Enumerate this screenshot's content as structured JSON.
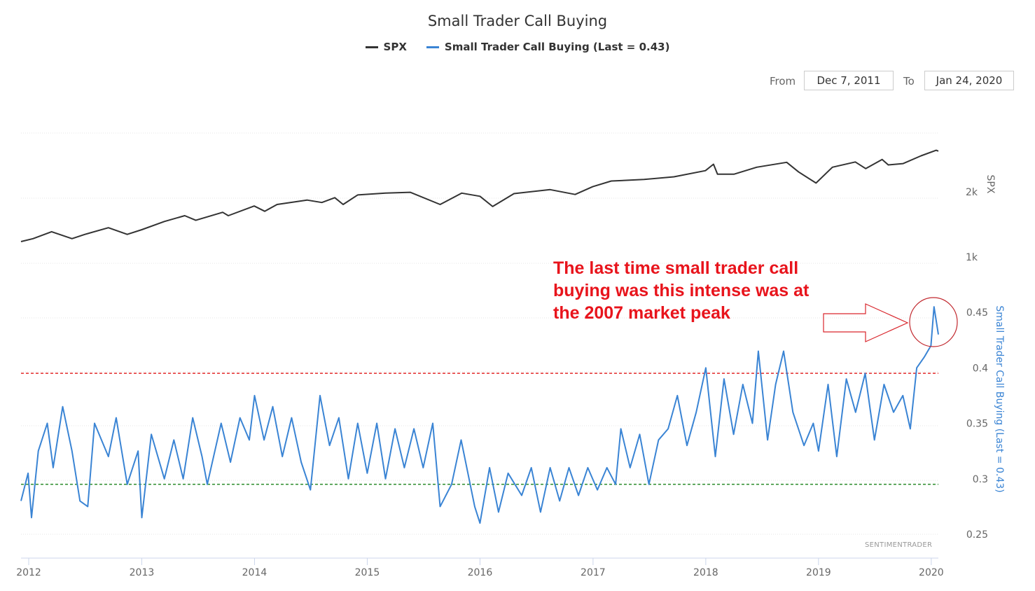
{
  "title": "Small Trader Call Buying",
  "legend": {
    "spx": {
      "label": "SPX",
      "color": "#333333"
    },
    "call": {
      "label": "Small Trader Call Buying (Last = 0.43)",
      "color": "#3a84d4"
    }
  },
  "range_selector": {
    "from_label": "From",
    "from_value": "Dec 7, 2011",
    "to_label": "To",
    "to_value": "Jan 24, 2020"
  },
  "annotation": {
    "lines": [
      "The last time small trader call",
      "buying was this intense was at",
      "the 2007 market peak"
    ],
    "color": "#e8141c",
    "arrow_icon": "right-arrow-icon",
    "highlight_icon": "circle-highlight-icon"
  },
  "credits": "SENTIMENTRADER",
  "chart_data": {
    "type": "line",
    "title": "Small Trader Call Buying",
    "x_axis": {
      "ticks": [
        "2012",
        "2013",
        "2014",
        "2015",
        "2016",
        "2017",
        "2018",
        "2019",
        "2020"
      ]
    },
    "y_axis_spx": {
      "label": "SPX",
      "scale": "log",
      "ticks": [
        "1k",
        "2k"
      ],
      "tick_values": [
        1000,
        2000
      ]
    },
    "y_axis_call": {
      "label": "Small Trader Call Buying (Last = 0.43)",
      "ticks": [
        "0.25",
        "0.3",
        "0.35",
        "0.4",
        "0.45"
      ],
      "tick_values": [
        0.25,
        0.3,
        0.35,
        0.4,
        0.45
      ],
      "range": [
        0.25,
        0.45
      ]
    },
    "reference_lines": [
      {
        "value": 0.395,
        "color": "#e32a2a",
        "style": "dashed"
      },
      {
        "value": 0.295,
        "color": "#2a8a2a",
        "style": "dashed"
      }
    ],
    "series": [
      {
        "name": "SPX",
        "color": "#333333",
        "points": [
          [
            "2011-12-07",
            1260
          ],
          [
            "2012-01-15",
            1300
          ],
          [
            "2012-03-15",
            1400
          ],
          [
            "2012-05-20",
            1300
          ],
          [
            "2012-07-01",
            1360
          ],
          [
            "2012-09-15",
            1460
          ],
          [
            "2012-11-15",
            1360
          ],
          [
            "2013-01-01",
            1430
          ],
          [
            "2013-03-15",
            1560
          ],
          [
            "2013-05-20",
            1660
          ],
          [
            "2013-06-25",
            1580
          ],
          [
            "2013-09-20",
            1720
          ],
          [
            "2013-10-08",
            1660
          ],
          [
            "2013-12-31",
            1840
          ],
          [
            "2014-02-03",
            1740
          ],
          [
            "2014-03-15",
            1870
          ],
          [
            "2014-06-20",
            1960
          ],
          [
            "2014-08-07",
            1910
          ],
          [
            "2014-09-18",
            2010
          ],
          [
            "2014-10-15",
            1870
          ],
          [
            "2014-12-01",
            2070
          ],
          [
            "2015-03-01",
            2110
          ],
          [
            "2015-05-20",
            2130
          ],
          [
            "2015-08-25",
            1870
          ],
          [
            "2015-11-03",
            2110
          ],
          [
            "2016-01-01",
            2040
          ],
          [
            "2016-02-11",
            1830
          ],
          [
            "2016-04-20",
            2100
          ],
          [
            "2016-08-15",
            2190
          ],
          [
            "2016-11-04",
            2080
          ],
          [
            "2016-12-31",
            2260
          ],
          [
            "2017-03-01",
            2400
          ],
          [
            "2017-06-15",
            2440
          ],
          [
            "2017-09-20",
            2510
          ],
          [
            "2017-12-31",
            2680
          ],
          [
            "2018-01-26",
            2870
          ],
          [
            "2018-02-08",
            2580
          ],
          [
            "2018-04-02",
            2580
          ],
          [
            "2018-06-15",
            2780
          ],
          [
            "2018-09-20",
            2930
          ],
          [
            "2018-10-29",
            2640
          ],
          [
            "2018-12-24",
            2350
          ],
          [
            "2019-02-15",
            2780
          ],
          [
            "2019-04-30",
            2940
          ],
          [
            "2019-06-03",
            2740
          ],
          [
            "2019-07-26",
            3020
          ],
          [
            "2019-08-15",
            2850
          ],
          [
            "2019-10-02",
            2890
          ],
          [
            "2019-11-29",
            3140
          ],
          [
            "2020-01-17",
            3330
          ],
          [
            "2020-01-24",
            3300
          ]
        ]
      },
      {
        "name": "Small Trader Call Buying (Last = 0.43)",
        "color": "#3a84d4",
        "points": [
          [
            "2011-12-07",
            0.28
          ],
          [
            "2011-12-30",
            0.305
          ],
          [
            "2012-01-10",
            0.265
          ],
          [
            "2012-02-01",
            0.325
          ],
          [
            "2012-03-01",
            0.35
          ],
          [
            "2012-03-20",
            0.31
          ],
          [
            "2012-04-20",
            0.365
          ],
          [
            "2012-05-20",
            0.325
          ],
          [
            "2012-06-15",
            0.28
          ],
          [
            "2012-07-10",
            0.275
          ],
          [
            "2012-08-01",
            0.35
          ],
          [
            "2012-09-15",
            0.32
          ],
          [
            "2012-10-10",
            0.355
          ],
          [
            "2012-11-15",
            0.295
          ],
          [
            "2012-12-20",
            0.325
          ],
          [
            "2013-01-01",
            0.265
          ],
          [
            "2013-02-01",
            0.34
          ],
          [
            "2013-03-15",
            0.3
          ],
          [
            "2013-04-15",
            0.335
          ],
          [
            "2013-05-15",
            0.3
          ],
          [
            "2013-06-15",
            0.355
          ],
          [
            "2013-07-15",
            0.32
          ],
          [
            "2013-08-01",
            0.295
          ],
          [
            "2013-09-15",
            0.35
          ],
          [
            "2013-10-15",
            0.315
          ],
          [
            "2013-11-15",
            0.355
          ],
          [
            "2013-12-15",
            0.335
          ],
          [
            "2014-01-01",
            0.375
          ],
          [
            "2014-02-01",
            0.335
          ],
          [
            "2014-03-01",
            0.365
          ],
          [
            "2014-04-01",
            0.32
          ],
          [
            "2014-05-01",
            0.355
          ],
          [
            "2014-06-01",
            0.315
          ],
          [
            "2014-07-01",
            0.29
          ],
          [
            "2014-08-01",
            0.375
          ],
          [
            "2014-09-01",
            0.33
          ],
          [
            "2014-10-01",
            0.355
          ],
          [
            "2014-11-01",
            0.3
          ],
          [
            "2014-12-01",
            0.35
          ],
          [
            "2015-01-01",
            0.305
          ],
          [
            "2015-02-01",
            0.35
          ],
          [
            "2015-03-01",
            0.3
          ],
          [
            "2015-04-01",
            0.345
          ],
          [
            "2015-05-01",
            0.31
          ],
          [
            "2015-06-01",
            0.345
          ],
          [
            "2015-07-01",
            0.31
          ],
          [
            "2015-08-01",
            0.35
          ],
          [
            "2015-08-25",
            0.275
          ],
          [
            "2015-10-01",
            0.295
          ],
          [
            "2015-11-01",
            0.335
          ],
          [
            "2015-12-15",
            0.275
          ],
          [
            "2016-01-01",
            0.26
          ],
          [
            "2016-02-01",
            0.31
          ],
          [
            "2016-03-01",
            0.27
          ],
          [
            "2016-04-01",
            0.305
          ],
          [
            "2016-05-15",
            0.285
          ],
          [
            "2016-06-15",
            0.31
          ],
          [
            "2016-07-15",
            0.27
          ],
          [
            "2016-08-15",
            0.31
          ],
          [
            "2016-09-15",
            0.28
          ],
          [
            "2016-10-15",
            0.31
          ],
          [
            "2016-11-15",
            0.285
          ],
          [
            "2016-12-15",
            0.31
          ],
          [
            "2017-01-15",
            0.29
          ],
          [
            "2017-02-15",
            0.31
          ],
          [
            "2017-03-15",
            0.295
          ],
          [
            "2017-04-01",
            0.345
          ],
          [
            "2017-05-01",
            0.31
          ],
          [
            "2017-06-01",
            0.34
          ],
          [
            "2017-07-01",
            0.295
          ],
          [
            "2017-08-01",
            0.335
          ],
          [
            "2017-09-01",
            0.345
          ],
          [
            "2017-10-01",
            0.375
          ],
          [
            "2017-11-01",
            0.33
          ],
          [
            "2017-12-01",
            0.36
          ],
          [
            "2018-01-01",
            0.4
          ],
          [
            "2018-02-01",
            0.32
          ],
          [
            "2018-03-01",
            0.39
          ],
          [
            "2018-04-01",
            0.34
          ],
          [
            "2018-05-01",
            0.385
          ],
          [
            "2018-06-01",
            0.35
          ],
          [
            "2018-06-20",
            0.415
          ],
          [
            "2018-07-20",
            0.335
          ],
          [
            "2018-08-15",
            0.385
          ],
          [
            "2018-09-10",
            0.415
          ],
          [
            "2018-10-10",
            0.36
          ],
          [
            "2018-11-15",
            0.33
          ],
          [
            "2018-12-15",
            0.35
          ],
          [
            "2019-01-01",
            0.325
          ],
          [
            "2019-02-01",
            0.385
          ],
          [
            "2019-03-01",
            0.32
          ],
          [
            "2019-04-01",
            0.39
          ],
          [
            "2019-05-01",
            0.36
          ],
          [
            "2019-06-01",
            0.395
          ],
          [
            "2019-07-01",
            0.335
          ],
          [
            "2019-08-01",
            0.385
          ],
          [
            "2019-09-01",
            0.36
          ],
          [
            "2019-10-01",
            0.375
          ],
          [
            "2019-10-25",
            0.345
          ],
          [
            "2019-11-15",
            0.4
          ],
          [
            "2019-12-10",
            0.41
          ],
          [
            "2019-12-31",
            0.42
          ],
          [
            "2020-01-10",
            0.455
          ],
          [
            "2020-01-24",
            0.43
          ]
        ]
      }
    ]
  }
}
